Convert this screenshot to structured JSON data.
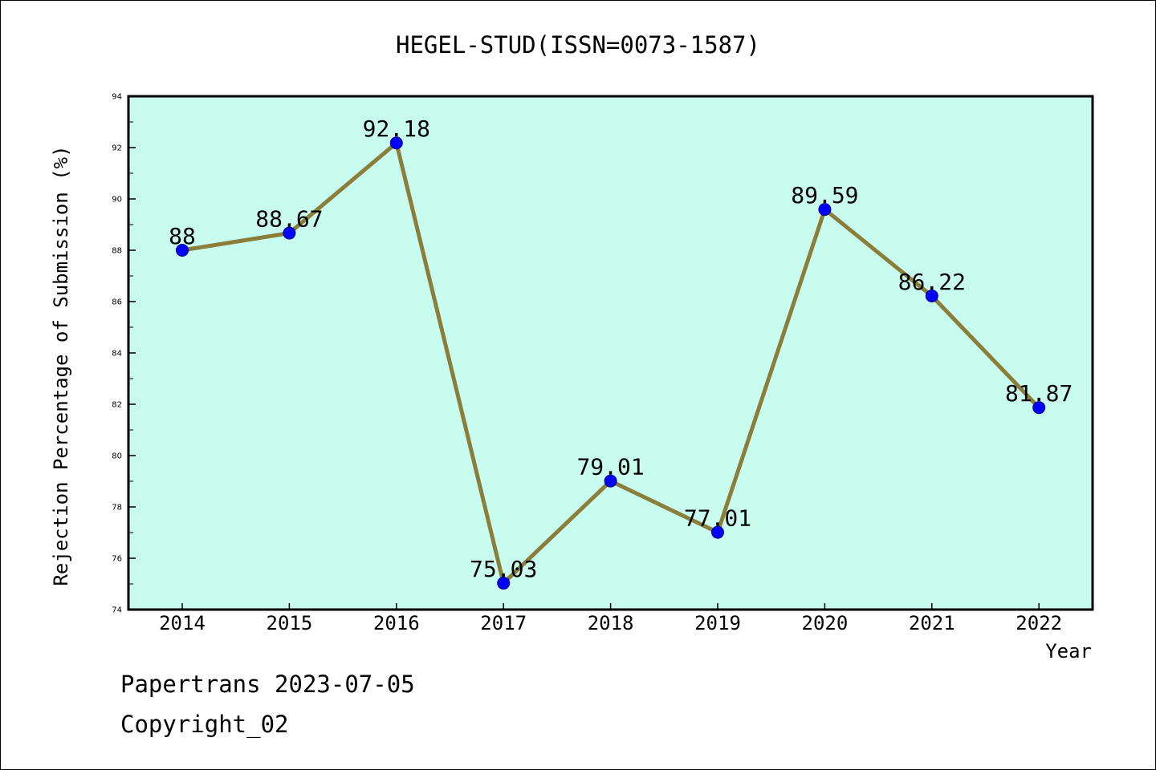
{
  "chart_data": {
    "type": "line",
    "title": "HEGEL-STUD(ISSN=0073-1587)",
    "xlabel": "Year",
    "ylabel": "Rejection Percentage of Submission (%)",
    "categories": [
      "2014",
      "2015",
      "2016",
      "2017",
      "2018",
      "2019",
      "2020",
      "2021",
      "2022"
    ],
    "values": [
      88,
      88.67,
      92.18,
      75.03,
      79.01,
      77.01,
      89.59,
      86.22,
      81.87
    ],
    "value_labels": [
      "88",
      "88.67",
      "92.18",
      "75.03",
      "79.01",
      "77.01",
      "89.59",
      "86.22",
      "81.87"
    ],
    "ylim": [
      74,
      94
    ],
    "yticks": [
      74,
      76,
      78,
      80,
      82,
      84,
      86,
      88,
      90,
      92,
      94
    ],
    "grid": false,
    "colors": {
      "plot_background": "#c8fcee",
      "line": "#8b7d3a",
      "marker": "#0000ff"
    }
  },
  "footer": {
    "line1": "Papertrans 2023-07-05",
    "line2": "Copyright_02"
  }
}
